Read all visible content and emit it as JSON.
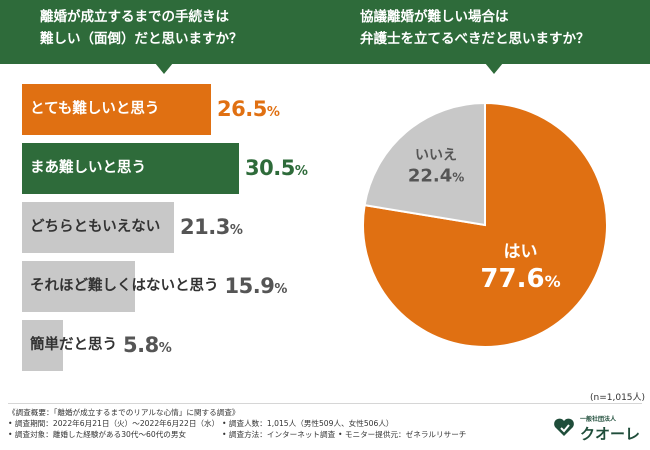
{
  "header": {
    "left_line1": "離婚が成立するまでの手続きは",
    "left_line2": "難しい（面倒）だと思いますか？",
    "right_line1": "協議離婚が難しい場合は",
    "right_line2": "弁護士を立てるべきだと思いますか？"
  },
  "chart_data": [
    {
      "type": "bar",
      "orientation": "horizontal",
      "title": "離婚が成立するまでの手続きは難しい（面倒）だと思いますか？",
      "categories": [
        "とても難しいと思う",
        "まあ難しいと思う",
        "どちらともいえない",
        "それほど難しくはないと思う",
        "簡単だと思う"
      ],
      "values": [
        26.5,
        30.5,
        21.3,
        15.9,
        5.8
      ],
      "value_labels": [
        "26.5",
        "30.5",
        "21.3",
        "15.9",
        "5.8"
      ],
      "unit": "%",
      "colors": [
        "#e07012",
        "#2e6b3a",
        "#c8c8c8",
        "#c8c8c8",
        "#c8c8c8"
      ],
      "label_colors": [
        "#ffffff",
        "#ffffff",
        "#333333",
        "#333333",
        "#333333"
      ],
      "value_colors": [
        "#e07012",
        "#2e6b3a",
        "#555555",
        "#555555",
        "#555555"
      ]
    },
    {
      "type": "pie",
      "title": "協議離婚が難しい場合は弁護士を立てるべきだと思いますか？",
      "labels": [
        "はい",
        "いいえ"
      ],
      "values": [
        77.6,
        22.4
      ],
      "value_labels": [
        "77.6",
        "22.4"
      ],
      "unit": "%",
      "colors": [
        "#e07012",
        "#c8c8c8"
      ],
      "label_colors": [
        "#ffffff",
        "#555555"
      ]
    }
  ],
  "n_note": "(n=1,015人)",
  "footer": {
    "line1": "《調査概要：「離婚が成立するまでのリアルな心情」に関する調査》",
    "period": "• 調査期間：2022年6月21日（火）～2022年6月22日（水）",
    "people": "• 調査人数：1,015人（男性509人、女性506人）",
    "target": "• 調査対象：離婚した経験がある30代～60代の男女",
    "method": "• 調査方法：インターネット調査",
    "monitor": "• モニター提供元：ゼネラルリサーチ"
  },
  "logo": {
    "small": "一般社団法人",
    "name": "クオーレ"
  }
}
